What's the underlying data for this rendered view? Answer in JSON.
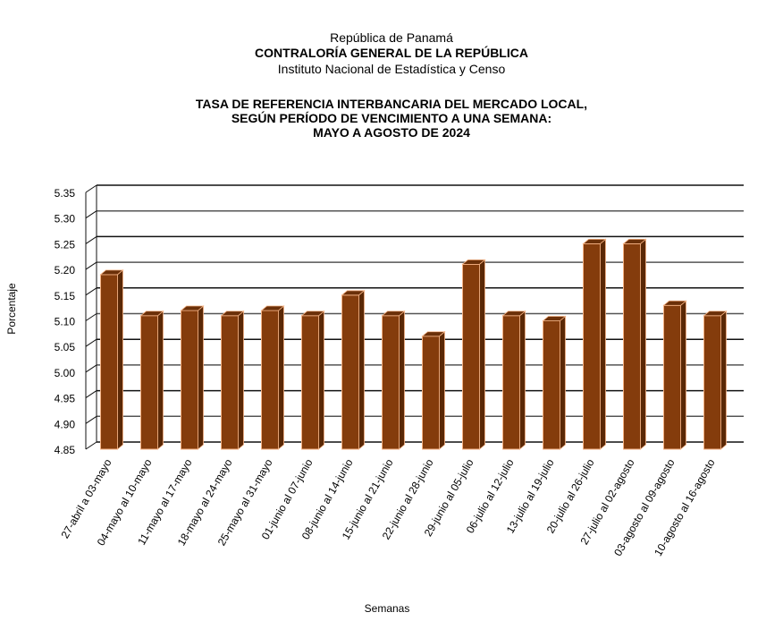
{
  "header": {
    "line1": "República de Panamá",
    "line2": "CONTRALORÍA GENERAL DE LA REPÚBLICA",
    "line3": "Instituto  Nacional de Estadística  y  Censo"
  },
  "chart_data": {
    "type": "bar",
    "title": [
      "TASA DE REFERENCIA INTERBANCARIA DEL MERCADO LOCAL,",
      "SEGÚN PERÍODO DE VENCIMIENTO A UNA SEMANA:",
      "MAYO A AGOSTO DE 2024"
    ],
    "xlabel": "Semanas",
    "ylabel": "Porcentaje",
    "ylim": [
      4.85,
      5.35
    ],
    "yticks": [
      "5.35",
      "5.30",
      "5.25",
      "5.20",
      "5.15",
      "5.10",
      "5.05",
      "5.00",
      "4.95",
      "4.90",
      "4.85"
    ],
    "grid": true,
    "categories": [
      "27-abril a 03-mayo",
      "04-mayo al 10-mayo",
      "11-mayo al 17-mayo",
      "18-mayo al 24-mayo",
      "25-mayo al 31-mayo",
      "01-junio al 07-junio",
      "08-junio al 14-junio",
      "15-junio al 21-junio",
      "22-junio al 28-junio",
      "29-junio al 05-julio",
      "06-julio al 12-julio",
      "13-julio al 19-julio",
      "20-julio al 26-julio",
      "27-julio al 02-agosto",
      "03-agosto al 09-agosto",
      "10-agosto al 16-agosto"
    ],
    "values": [
      5.19,
      5.11,
      5.12,
      5.11,
      5.12,
      5.11,
      5.15,
      5.11,
      5.07,
      5.21,
      5.11,
      5.1,
      5.25,
      5.25,
      5.13,
      5.11
    ],
    "colors": {
      "front": "#843C0C",
      "side": "#5A2806",
      "top": "#6B3009",
      "edge": "#F4B183"
    }
  }
}
